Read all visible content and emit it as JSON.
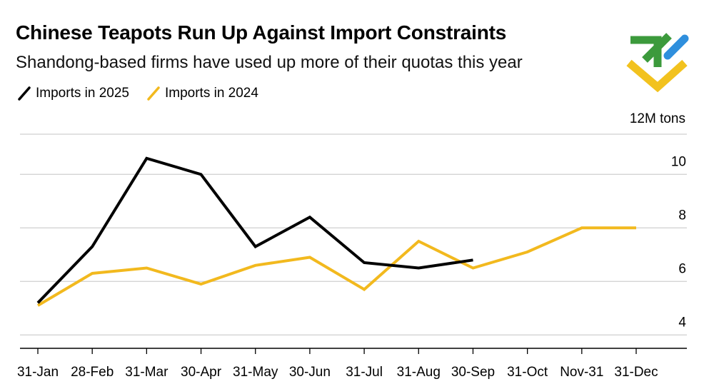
{
  "chart_data": {
    "type": "line",
    "title": "Chinese Teapots Run Up Against Import Constraints",
    "subtitle": "Shandong-based firms have used up more of their quotas this year",
    "ylabel": "12M tons",
    "xlabel": "",
    "ylim": [
      3.5,
      11.5
    ],
    "yticks": [
      4,
      6,
      8,
      10
    ],
    "categories": [
      "31-Jan",
      "28-Feb",
      "31-Mar",
      "30-Apr",
      "31-May",
      "30-Jun",
      "31-Jul",
      "31-Aug",
      "30-Sep",
      "31-Oct",
      "Nov-31",
      "31-Dec"
    ],
    "series": [
      {
        "name": "Imports in 2025",
        "color": "#000000",
        "values": [
          5.2,
          7.3,
          10.6,
          10.0,
          7.3,
          8.4,
          6.7,
          6.5,
          6.8,
          null,
          null,
          null
        ]
      },
      {
        "name": "Imports in 2024",
        "color": "#f2b91e",
        "values": [
          5.1,
          6.3,
          6.5,
          5.9,
          6.6,
          6.9,
          5.7,
          7.5,
          6.5,
          7.1,
          8.0,
          8.0
        ]
      }
    ],
    "grid": true,
    "legend_position": "top-left"
  },
  "logo": {
    "green": "#3c9a3c",
    "blue": "#2f8fdd",
    "yellow": "#f2c21e"
  }
}
